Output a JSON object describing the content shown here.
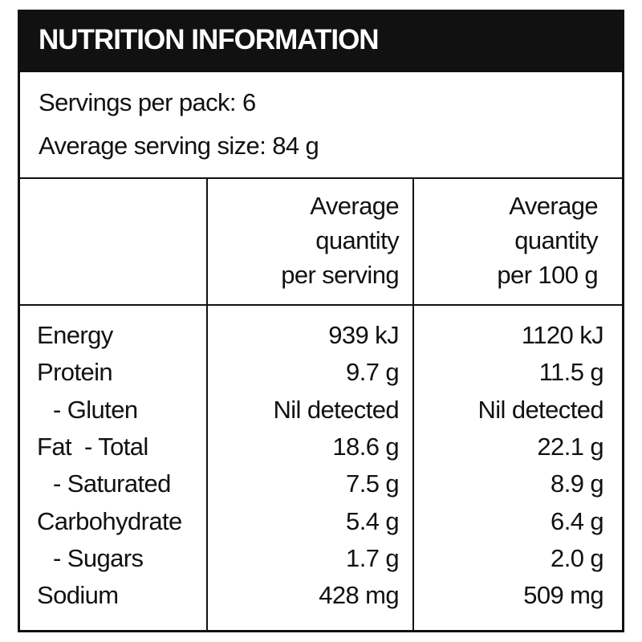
{
  "header": {
    "title": "NUTRITION INFORMATION"
  },
  "servings": [
    "Servings per pack: 6",
    "Average serving size: 84 g"
  ],
  "table": {
    "columns": [
      [
        "Average",
        "quantity",
        "per serving"
      ],
      [
        "Average",
        "quantity",
        "per 100 g"
      ]
    ],
    "rows": [
      [
        "Energy",
        "939 kJ",
        "1120 kJ"
      ],
      [
        "Protein",
        "9.7 g",
        "11.5 g"
      ],
      [
        "- Gluten",
        "Nil detected",
        "Nil detected"
      ],
      [
        "Fat  - Total",
        "18.6 g",
        "22.1 g"
      ],
      [
        "- Saturated",
        "7.5 g",
        "8.9 g"
      ],
      [
        "Carbohydrate",
        "5.4 g",
        "6.4 g"
      ],
      [
        "- Sugars",
        "1.7 g",
        "2.0 g"
      ],
      [
        "Sodium",
        "428 mg",
        "509 mg"
      ]
    ]
  }
}
